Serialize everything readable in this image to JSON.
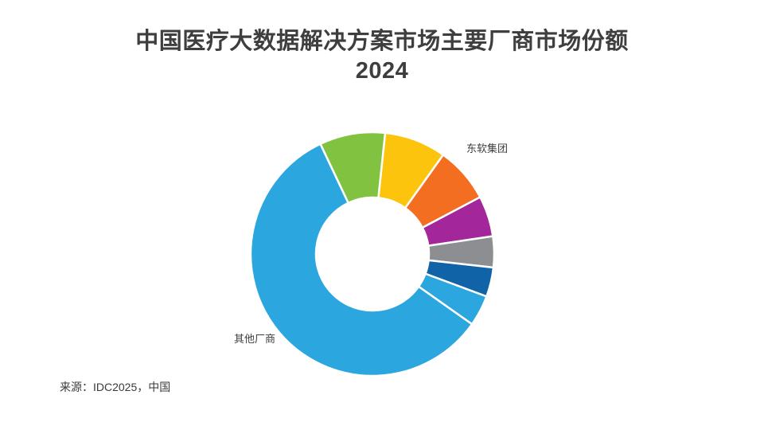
{
  "chart_data": {
    "type": "pie",
    "variant": "donut",
    "title": "中国医疗大数据解决方案市场主要厂商市场份额",
    "subtitle": "2024",
    "source": "来源：IDC2025，中国",
    "unit": "percent market share",
    "start_angle_deg": 6,
    "donut_hole_ratio": 0.464,
    "legend": "none",
    "slices": [
      {
        "label": "",
        "value": 8.2,
        "color": "#FDC40E"
      },
      {
        "label": "东软集团",
        "value": 7.4,
        "color": "#F36E21"
      },
      {
        "label": "",
        "value": 5.4,
        "color": "#A3269B"
      },
      {
        "label": "",
        "value": 4.1,
        "color": "#8C8E91"
      },
      {
        "label": "",
        "value": 3.9,
        "color": "#1063A7"
      },
      {
        "label": "",
        "value": 4.1,
        "color": "#2BA6DE"
      },
      {
        "label": "其他厂商",
        "value": 58.2,
        "color": "#2BA6DE"
      },
      {
        "label": "",
        "value": 8.7,
        "color": "#81C341"
      }
    ]
  }
}
